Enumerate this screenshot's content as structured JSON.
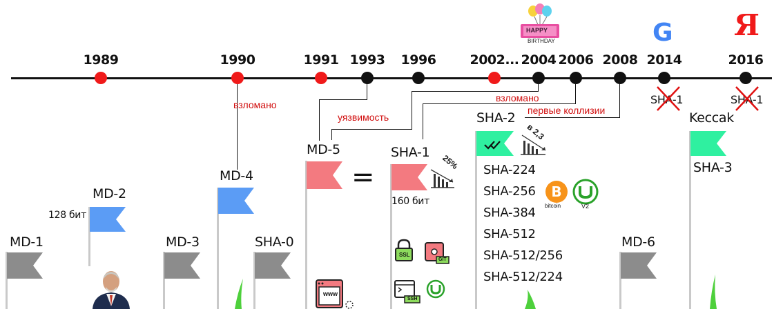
{
  "years": [
    "1989",
    "1990",
    "1991",
    "1993",
    "1996",
    "2002...",
    "2004",
    "2006",
    "2008",
    "2014",
    "2016"
  ],
  "birthday": {
    "line1": "HAPPY",
    "line2": "BIRTHDAY"
  },
  "logos": {
    "google": "G",
    "yandex": "Я",
    "bitcoin": "bitcoin",
    "utorrent_v2": "V2"
  },
  "annotations": {
    "hacked_1": "взломано",
    "vulnerability": "уязвимость",
    "hacked_2": "взломано",
    "first_collisions": "первые коллизии"
  },
  "algorithms": {
    "md1": "MD-1",
    "md2": "MD-2",
    "md2_bits": "128 бит",
    "md3": "MD-3",
    "md4": "MD-4",
    "sha0": "SHA-0",
    "md5": "MD-5",
    "sha1": "SHA-1",
    "sha1_bits": "160 бит",
    "sha1_pct": "25%",
    "sha2": "SHA-2",
    "sha2_pct": "в 2,3",
    "keccak": "Keccak",
    "sha3": "SHA-3",
    "md6": "MD-6",
    "sha1_2014": "SHA-1",
    "sha1_2016": "SHA-1",
    "equals": "="
  },
  "sha2_variants": [
    "SHA-224",
    "SHA-256",
    "SHA-384",
    "SHA-512",
    "SHA-512/256",
    "SHA-512/224"
  ],
  "icons": {
    "ssl": "SSL",
    "git": "GIT",
    "ssh": "SSH",
    "www": "www"
  },
  "colors": {
    "red_dot": "#f01a1a",
    "gray_flag": "#8c8c8c",
    "blue_flag": "#5b9cf5",
    "pink_flag": "#f37a80",
    "green_flag": "#2ff0a0"
  }
}
